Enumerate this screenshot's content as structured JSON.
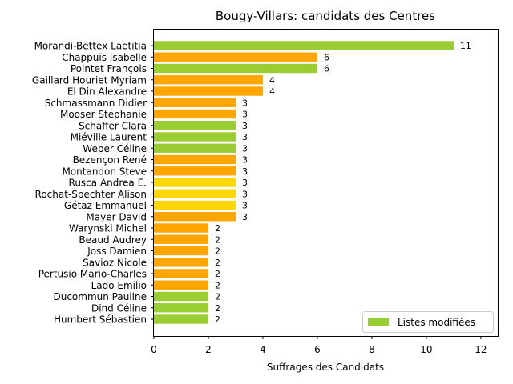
{
  "chart_data": {
    "type": "bar",
    "orientation": "horizontal",
    "title": "Bougy-Villars: candidats des Centres",
    "xlabel": "Suffrages des Candidats",
    "ylabel": "",
    "xlim": [
      0,
      12.65
    ],
    "xticks": [
      "0",
      "2",
      "4",
      "6",
      "8",
      "10",
      "12"
    ],
    "grid": false,
    "legend": {
      "label": "Listes modifiées",
      "color": "#9ACD32",
      "placement": "lower-right"
    },
    "bars": [
      {
        "name": "Morandi-Bettex Laetitia",
        "value": 11,
        "label": "11",
        "color": "#9ACD32"
      },
      {
        "name": "Chappuis Isabelle",
        "value": 6,
        "label": "6",
        "color": "#FFA500"
      },
      {
        "name": "Pointet François",
        "value": 6,
        "label": "6",
        "color": "#9ACD32"
      },
      {
        "name": "Gaillard Houriet Myriam",
        "value": 4,
        "label": "4",
        "color": "#FFA500"
      },
      {
        "name": "El Din Alexandre",
        "value": 4,
        "label": "4",
        "color": "#FFA500"
      },
      {
        "name": "Schmassmann Didier",
        "value": 3,
        "label": "3",
        "color": "#FFA500"
      },
      {
        "name": "Mooser Stéphanie",
        "value": 3,
        "label": "3",
        "color": "#FFA500"
      },
      {
        "name": "Schaffer Clara",
        "value": 3,
        "label": "3",
        "color": "#9ACD32"
      },
      {
        "name": "Miéville Laurent",
        "value": 3,
        "label": "3",
        "color": "#9ACD32"
      },
      {
        "name": "Weber Céline",
        "value": 3,
        "label": "3",
        "color": "#9ACD32"
      },
      {
        "name": "Bezençon René",
        "value": 3,
        "label": "3",
        "color": "#FFA500"
      },
      {
        "name": "Montandon Steve",
        "value": 3,
        "label": "3",
        "color": "#FFA500"
      },
      {
        "name": "Rusca Andrea E.",
        "value": 3,
        "label": "3",
        "color": "#FFD700"
      },
      {
        "name": "Rochat-Spechter Alison",
        "value": 3,
        "label": "3",
        "color": "#FFD700"
      },
      {
        "name": "Gétaz Emmanuel",
        "value": 3,
        "label": "3",
        "color": "#FFD700"
      },
      {
        "name": "Mayer David",
        "value": 3,
        "label": "3",
        "color": "#FFA500"
      },
      {
        "name": "Warynski Michel",
        "value": 2,
        "label": "2",
        "color": "#FFA500"
      },
      {
        "name": "Beaud Audrey",
        "value": 2,
        "label": "2",
        "color": "#FFA500"
      },
      {
        "name": "Joss Damien",
        "value": 2,
        "label": "2",
        "color": "#FFA500"
      },
      {
        "name": "Savioz Nicole",
        "value": 2,
        "label": "2",
        "color": "#FFA500"
      },
      {
        "name": "Pertusio Mario-Charles",
        "value": 2,
        "label": "2",
        "color": "#FFA500"
      },
      {
        "name": "Lado Emilio",
        "value": 2,
        "label": "2",
        "color": "#FFA500"
      },
      {
        "name": "Ducommun Pauline",
        "value": 2,
        "label": "2",
        "color": "#9ACD32"
      },
      {
        "name": "Dind Céline",
        "value": 2,
        "label": "2",
        "color": "#9ACD32"
      },
      {
        "name": "Humbert Sébastien",
        "value": 2,
        "label": "2",
        "color": "#9ACD32"
      }
    ]
  }
}
